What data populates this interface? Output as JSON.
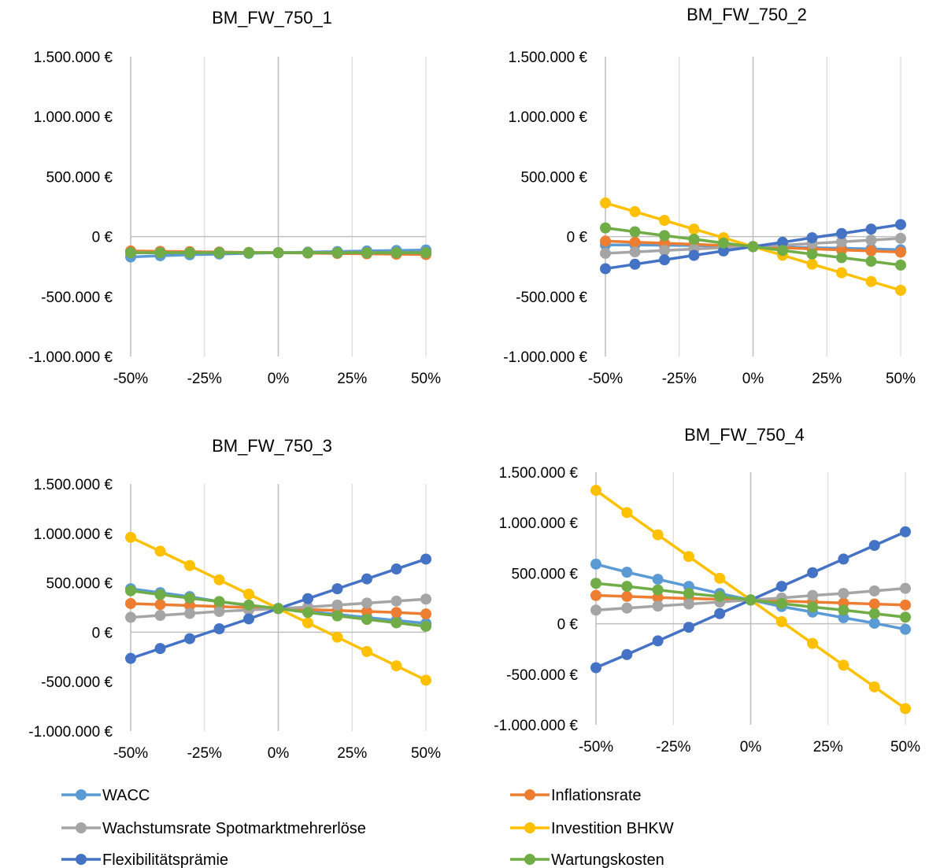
{
  "chart_data": [
    {
      "type": "line",
      "title": "BM_FW_750_1",
      "x": [
        -50,
        -40,
        -30,
        -20,
        -10,
        0,
        10,
        20,
        30,
        40,
        50
      ],
      "x_ticks": [
        -50,
        -25,
        0,
        25,
        50
      ],
      "x_tick_labels": [
        "-50%",
        "-25%",
        "0%",
        "25%",
        "50%"
      ],
      "ylim": [
        -1000000,
        1500000
      ],
      "y_ticks": [
        -1000000,
        -500000,
        0,
        500000,
        1000000,
        1500000
      ],
      "y_tick_labels": [
        "-1.000.000 €",
        "-500.000 €",
        "0 €",
        "500.000 €",
        "1.000.000 €",
        "1.500.000 €"
      ],
      "grid": "vertical",
      "series": [
        {
          "name": "WACC",
          "values": [
            -170000,
            -160000,
            -152000,
            -146000,
            -140000,
            -135000,
            -130000,
            -125000,
            -120000,
            -116000,
            -112000
          ]
        },
        {
          "name": "Inflationsrate",
          "values": [
            -120000,
            -123000,
            -126000,
            -129000,
            -132000,
            -135000,
            -138000,
            -141000,
            -144000,
            -147000,
            -150000
          ]
        },
        {
          "name": "Wachstumsrate Spotmarktmehrerlöse",
          "values": [
            -135000,
            -135000,
            -135000,
            -135000,
            -135000,
            -135000,
            -135000,
            -135000,
            -135000,
            -135000,
            -135000
          ]
        },
        {
          "name": "Investition BHKW",
          "values": [
            -135000,
            -135000,
            -135000,
            -135000,
            -135000,
            -135000,
            -135000,
            -135000,
            -135000,
            -135000,
            -135000
          ]
        },
        {
          "name": "Flexibilitätsprämie",
          "values": [
            -135000,
            -135000,
            -135000,
            -135000,
            -135000,
            -135000,
            -135000,
            -135000,
            -135000,
            -135000,
            -135000
          ]
        },
        {
          "name": "Wartungskosten",
          "values": [
            -135000,
            -135000,
            -135000,
            -135000,
            -135000,
            -135000,
            -135000,
            -135000,
            -135000,
            -135000,
            -135000
          ]
        }
      ]
    },
    {
      "type": "line",
      "title": "BM_FW_750_2",
      "x": [
        -50,
        -40,
        -30,
        -20,
        -10,
        0,
        10,
        20,
        30,
        40,
        50
      ],
      "x_ticks": [
        -50,
        -25,
        0,
        25,
        50
      ],
      "x_tick_labels": [
        "-50%",
        "-25%",
        "0%",
        "25%",
        "50%"
      ],
      "ylim": [
        -1000000,
        1500000
      ],
      "y_ticks": [
        -1000000,
        -500000,
        0,
        500000,
        1000000,
        1500000
      ],
      "y_tick_labels": [
        "-1.000.000 €",
        "-500.000 €",
        "0 €",
        "500.000 €",
        "1.000.000 €",
        "1.500.000 €"
      ],
      "grid": "vertical",
      "series": [
        {
          "name": "WACC",
          "values": [
            -70000,
            -70000,
            -72000,
            -75000,
            -80000,
            -84000,
            -88000,
            -93000,
            -98000,
            -103000,
            -110000
          ]
        },
        {
          "name": "Inflationsrate",
          "values": [
            -38000,
            -47000,
            -56000,
            -65000,
            -75000,
            -84000,
            -93000,
            -103000,
            -112000,
            -120000,
            -130000
          ]
        },
        {
          "name": "Wachstumsrate Spotmarktmehrerlöse",
          "values": [
            -140000,
            -128000,
            -116000,
            -104000,
            -92000,
            -84000,
            -72000,
            -58000,
            -44000,
            -30000,
            -15000
          ]
        },
        {
          "name": "Investition BHKW",
          "values": [
            280000,
            208000,
            135000,
            62000,
            -10000,
            -84000,
            -156000,
            -230000,
            -302000,
            -375000,
            -448000
          ]
        },
        {
          "name": "Flexibilitätsprämie",
          "values": [
            -268000,
            -231000,
            -194000,
            -157000,
            -120000,
            -84000,
            -48000,
            -10000,
            25000,
            62000,
            100000
          ]
        },
        {
          "name": "Wartungskosten",
          "values": [
            72000,
            40000,
            8000,
            -22000,
            -54000,
            -84000,
            -116000,
            -146000,
            -176000,
            -206000,
            -238000
          ]
        }
      ]
    },
    {
      "type": "line",
      "title": "BM_FW_750_3",
      "x": [
        -50,
        -40,
        -30,
        -20,
        -10,
        0,
        10,
        20,
        30,
        40,
        50
      ],
      "x_ticks": [
        -50,
        -25,
        0,
        25,
        50
      ],
      "x_tick_labels": [
        "-50%",
        "-25%",
        "0%",
        "25%",
        "50%"
      ],
      "ylim": [
        -1000000,
        1500000
      ],
      "y_ticks": [
        -1000000,
        -500000,
        0,
        500000,
        1000000,
        1500000
      ],
      "y_tick_labels": [
        "-1.000.000 €",
        "-500.000 €",
        "0 €",
        "500.000 €",
        "1.000.000 €",
        "1.500.000 €"
      ],
      "grid": "vertical",
      "series": [
        {
          "name": "WACC",
          "values": [
            440000,
            400000,
            360000,
            310000,
            270000,
            240000,
            210000,
            180000,
            150000,
            120000,
            90000
          ]
        },
        {
          "name": "Inflationsrate",
          "values": [
            290000,
            280000,
            270000,
            260000,
            250000,
            240000,
            230000,
            220000,
            210000,
            200000,
            185000
          ]
        },
        {
          "name": "Wachstumsrate Spotmarktmehrerlöse",
          "values": [
            150000,
            170000,
            190000,
            210000,
            225000,
            240000,
            255000,
            275000,
            295000,
            315000,
            335000
          ]
        },
        {
          "name": "Investition BHKW",
          "values": [
            960000,
            820000,
            675000,
            530000,
            385000,
            240000,
            95000,
            -50000,
            -195000,
            -340000,
            -485000
          ]
        },
        {
          "name": "Flexibilitätsprämie",
          "values": [
            -265000,
            -165000,
            -65000,
            35000,
            135000,
            240000,
            340000,
            440000,
            540000,
            640000,
            740000
          ]
        },
        {
          "name": "Wartungskosten",
          "values": [
            420000,
            380000,
            345000,
            310000,
            275000,
            240000,
            200000,
            165000,
            130000,
            95000,
            60000
          ]
        }
      ]
    },
    {
      "type": "line",
      "title": "BM_FW_750_4",
      "x": [
        -50,
        -40,
        -30,
        -20,
        -10,
        0,
        10,
        20,
        30,
        40,
        50
      ],
      "x_ticks": [
        -50,
        -25,
        0,
        25,
        50
      ],
      "x_tick_labels": [
        "-50%",
        "-25%",
        "0%",
        "25%",
        "50%"
      ],
      "ylim": [
        -1000000,
        1500000
      ],
      "y_ticks": [
        -1000000,
        -500000,
        0,
        500000,
        1000000,
        1500000
      ],
      "y_tick_labels": [
        "-1.000.000 €",
        "-500.000 €",
        "0 €",
        "500.000 €",
        "1.000.000 €",
        "1.500.000 €"
      ],
      "grid": "vertical",
      "series": [
        {
          "name": "WACC",
          "values": [
            590000,
            510000,
            440000,
            370000,
            300000,
            235000,
            170000,
            115000,
            60000,
            5000,
            -55000
          ]
        },
        {
          "name": "Inflationsrate",
          "values": [
            280000,
            270000,
            260000,
            250000,
            242000,
            235000,
            225000,
            215000,
            205000,
            195000,
            185000
          ]
        },
        {
          "name": "Wachstumsrate Spotmarktmehrerlöse",
          "values": [
            135000,
            155000,
            175000,
            195000,
            215000,
            235000,
            255000,
            280000,
            300000,
            325000,
            350000
          ]
        },
        {
          "name": "Investition BHKW",
          "values": [
            1320000,
            1100000,
            880000,
            665000,
            450000,
            235000,
            20000,
            -195000,
            -410000,
            -625000,
            -840000
          ]
        },
        {
          "name": "Flexibilitätsprämie",
          "values": [
            -435000,
            -305000,
            -170000,
            -35000,
            100000,
            235000,
            370000,
            505000,
            640000,
            775000,
            910000
          ]
        },
        {
          "name": "Wartungskosten",
          "values": [
            400000,
            370000,
            335000,
            300000,
            270000,
            235000,
            200000,
            165000,
            135000,
            100000,
            65000
          ]
        }
      ]
    }
  ],
  "legend": [
    {
      "name": "WACC",
      "color": "#5b9bd5"
    },
    {
      "name": "Inflationsrate",
      "color": "#ed7d31"
    },
    {
      "name": "Wachstumsrate Spotmarktmehrerlöse",
      "color": "#a5a5a5"
    },
    {
      "name": "Investition BHKW",
      "color": "#ffc000"
    },
    {
      "name": "Flexibilitätsprämie",
      "color": "#4472c4"
    },
    {
      "name": "Wartungskosten",
      "color": "#70ad47"
    }
  ],
  "colors": {
    "WACC": "#5b9bd5",
    "Inflationsrate": "#ed7d31",
    "Wachstumsrate Spotmarktmehrerlöse": "#a5a5a5",
    "Investition BHKW": "#ffc000",
    "Flexibilitätsprämie": "#4472c4",
    "Wartungskosten": "#70ad47",
    "grid": "#d9d9d9",
    "axis": "#bfbfbf"
  }
}
